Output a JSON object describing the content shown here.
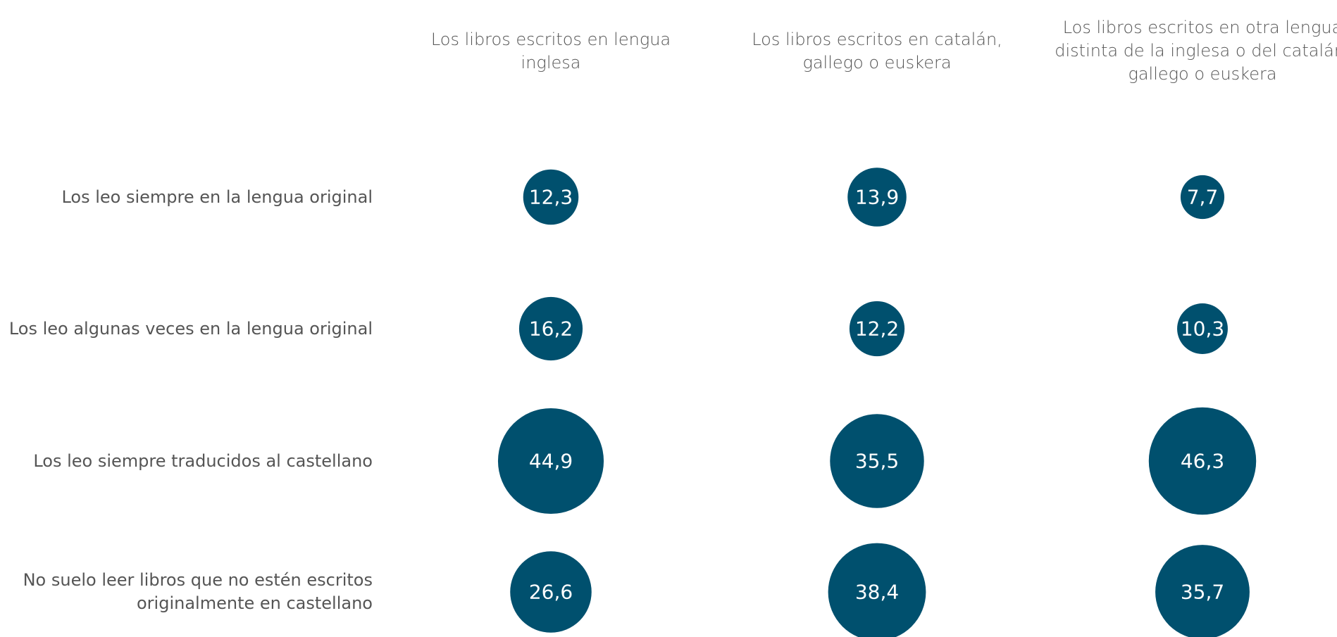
{
  "chart_data": {
    "type": "bubble",
    "categories": [
      "Los libros escritos en lengua inglesa",
      "Los libros escritos en catalán, gallego o euskera",
      "Los libros escritos en otra lengua distinta de la inglesa o del catalán, gallego o euskera"
    ],
    "color": "#00506e",
    "series": [
      {
        "name": "Los leo siempre en la lengua original",
        "values": [
          12.3,
          13.9,
          7.7
        ],
        "value_labels": [
          "12,3",
          "13,9",
          "7,7"
        ]
      },
      {
        "name": "Los leo algunas veces en la lengua original",
        "values": [
          16.2,
          12.2,
          10.3
        ],
        "value_labels": [
          "16,2",
          "12,2",
          "10,3"
        ]
      },
      {
        "name": "Los leo siempre traducidos al castellano",
        "values": [
          44.9,
          35.5,
          46.3
        ],
        "value_labels": [
          "44,9",
          "35,5",
          "46,3"
        ]
      },
      {
        "name": "No suelo leer libros que no estén escritos originalmente en castellano",
        "values": [
          26.6,
          38.4,
          35.7
        ],
        "value_labels": [
          "26,6",
          "38,4",
          "35,7"
        ]
      }
    ]
  }
}
